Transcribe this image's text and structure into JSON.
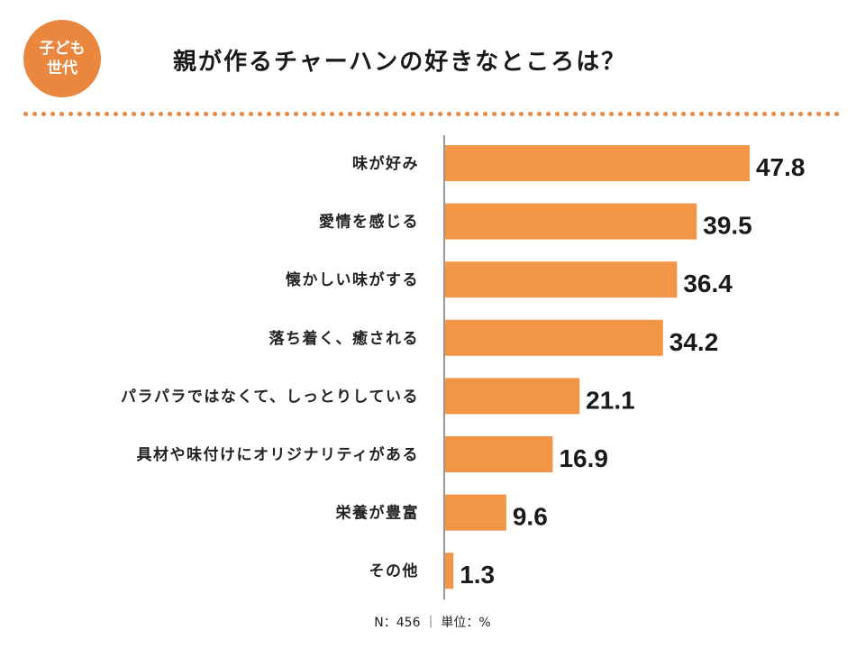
{
  "badge": {
    "line1": "子ども",
    "line2": "世代"
  },
  "title": "親が作るチャーハンの好きなところは？",
  "footer": "N：456 ｜ 単位：%",
  "colors": {
    "accent": "#e8873d",
    "bar": "#f39547",
    "axis": "#555555"
  },
  "chart_data": {
    "type": "bar",
    "orientation": "horizontal",
    "title": "親が作るチャーハンの好きなところは？",
    "categories": [
      "味が好み",
      "愛情を感じる",
      "懐かしい味がする",
      "落ち着く、癒される",
      "パラパラではなくて、しっとりしている",
      "具材や味付けにオリジナリティがある",
      "栄養が豊富",
      "その他"
    ],
    "values": [
      47.8,
      39.5,
      36.4,
      34.2,
      21.1,
      16.9,
      9.6,
      1.3
    ],
    "unit": "%",
    "xlim": [
      0,
      50
    ],
    "grid": false,
    "legend": "none"
  }
}
